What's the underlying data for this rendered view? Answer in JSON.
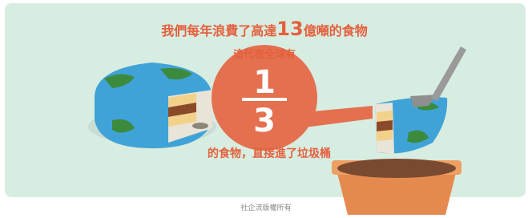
{
  "headline": {
    "prefix": "我們每年浪費了高達",
    "highlight": "13",
    "suffix": "億噸的食物"
  },
  "subline": "這代表全球有",
  "fraction": {
    "numerator": "1",
    "denominator": "3"
  },
  "conclusion": "的食物，直接進了垃圾桶",
  "footer": "社企流版權所有"
}
